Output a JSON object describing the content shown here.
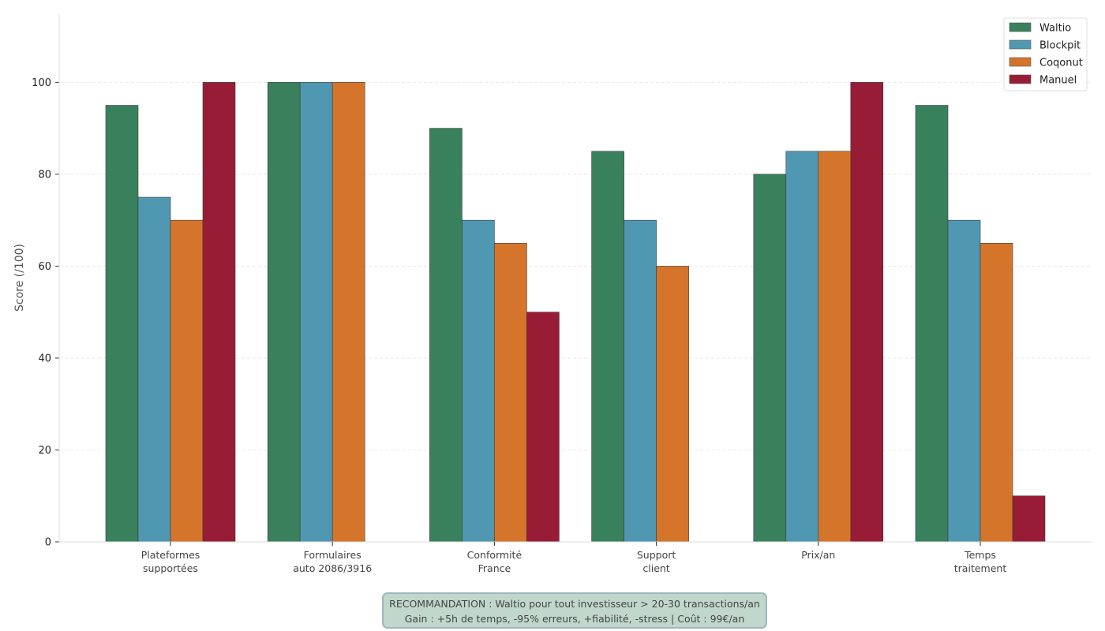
{
  "chart_data": {
    "type": "bar",
    "title": "",
    "xlabel": "",
    "ylabel": "Score (/100)",
    "ylim": [
      0,
      115
    ],
    "yticks": [
      0,
      20,
      40,
      60,
      80,
      100
    ],
    "grid": "horizontal dashed",
    "legend_position": "top-right",
    "categories": [
      [
        "Plateformes",
        "supportées"
      ],
      [
        "Formulaires",
        "auto 2086/3916"
      ],
      [
        "Conformité",
        "France"
      ],
      [
        "Support",
        "client"
      ],
      [
        "Prix/an"
      ],
      [
        "Temps",
        "traitement"
      ]
    ],
    "series": [
      {
        "name": "Waltio",
        "color": "#38815c",
        "values": [
          95,
          100,
          90,
          85,
          80,
          95
        ]
      },
      {
        "name": "Blockpit",
        "color": "#5098b2",
        "values": [
          75,
          100,
          70,
          70,
          85,
          70
        ]
      },
      {
        "name": "Coqonut",
        "color": "#d4752b",
        "values": [
          70,
          100,
          65,
          60,
          85,
          65
        ]
      },
      {
        "name": "Manuel",
        "color": "#991c36",
        "values": [
          100,
          null,
          50,
          null,
          100,
          10
        ]
      }
    ]
  },
  "recommendation": {
    "line1": "RECOMMANDATION : Waltio pour tout investisseur > 20-30 transactions/an",
    "line2": "Gain : +5h de temps, -95% erreurs, +fiabilité, -stress | Coût : 99€/an"
  }
}
